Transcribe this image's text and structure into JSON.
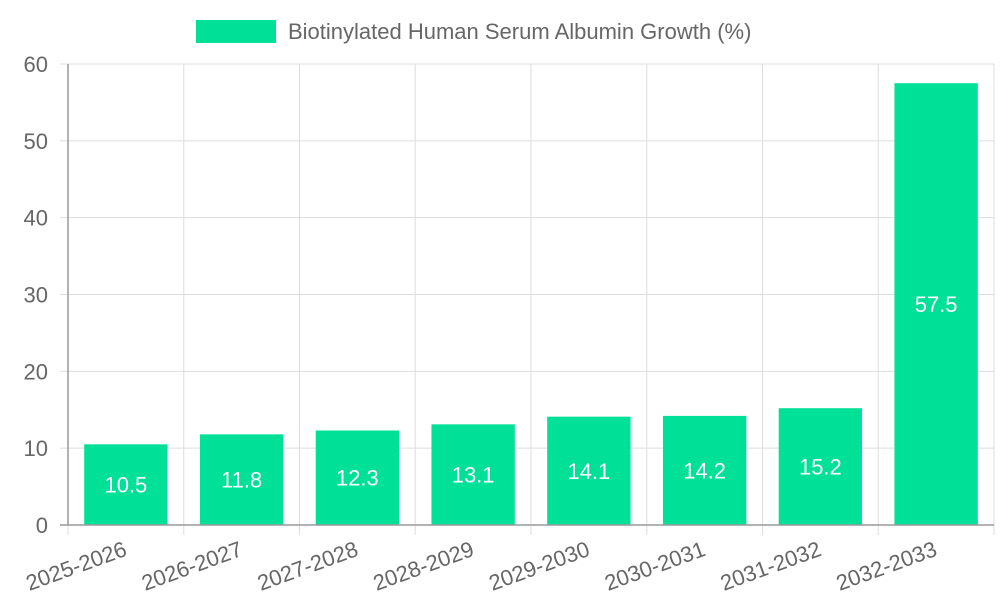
{
  "chart_data": {
    "type": "bar",
    "categories": [
      "2025-2026",
      "2026-2027",
      "2027-2028",
      "2028-2029",
      "2029-2030",
      "2030-2031",
      "2031-2032",
      "2032-2033"
    ],
    "series": [
      {
        "name": "Biotinylated Human Serum Albumin Growth (%)",
        "values": [
          10.5,
          11.8,
          12.3,
          13.1,
          14.1,
          14.2,
          15.2,
          57.5
        ],
        "color": "#00e096"
      }
    ],
    "data_labels": [
      "10.5",
      "11.8",
      "12.3",
      "13.1",
      "14.1",
      "14.2",
      "15.2",
      "57.5"
    ],
    "y_ticks": [
      "0",
      "10",
      "20",
      "30",
      "40",
      "50",
      "60"
    ],
    "ylim": [
      0,
      60
    ],
    "grid": true,
    "legend_position": "top-center",
    "colors": {
      "grid": "#dddddd",
      "axis": "#999999",
      "text": "#666666",
      "label_text": "#ffffff"
    }
  }
}
